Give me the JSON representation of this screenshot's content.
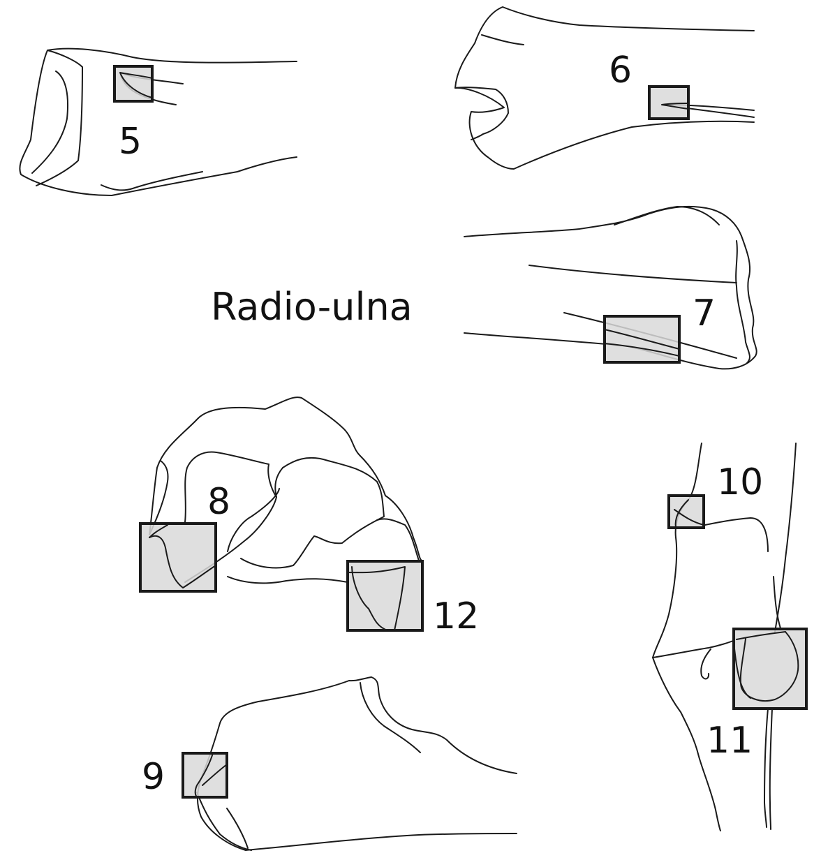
{
  "title": "Radio-ulna",
  "labels": {
    "n5": "5",
    "n6": "6",
    "n7": "7",
    "n8": "8",
    "n9": "9",
    "n10": "10",
    "n11": "11",
    "n12": "12"
  },
  "colors": {
    "line": "#1a1a1a",
    "box_fill": "#d9d9d9",
    "background": "#ffffff"
  }
}
